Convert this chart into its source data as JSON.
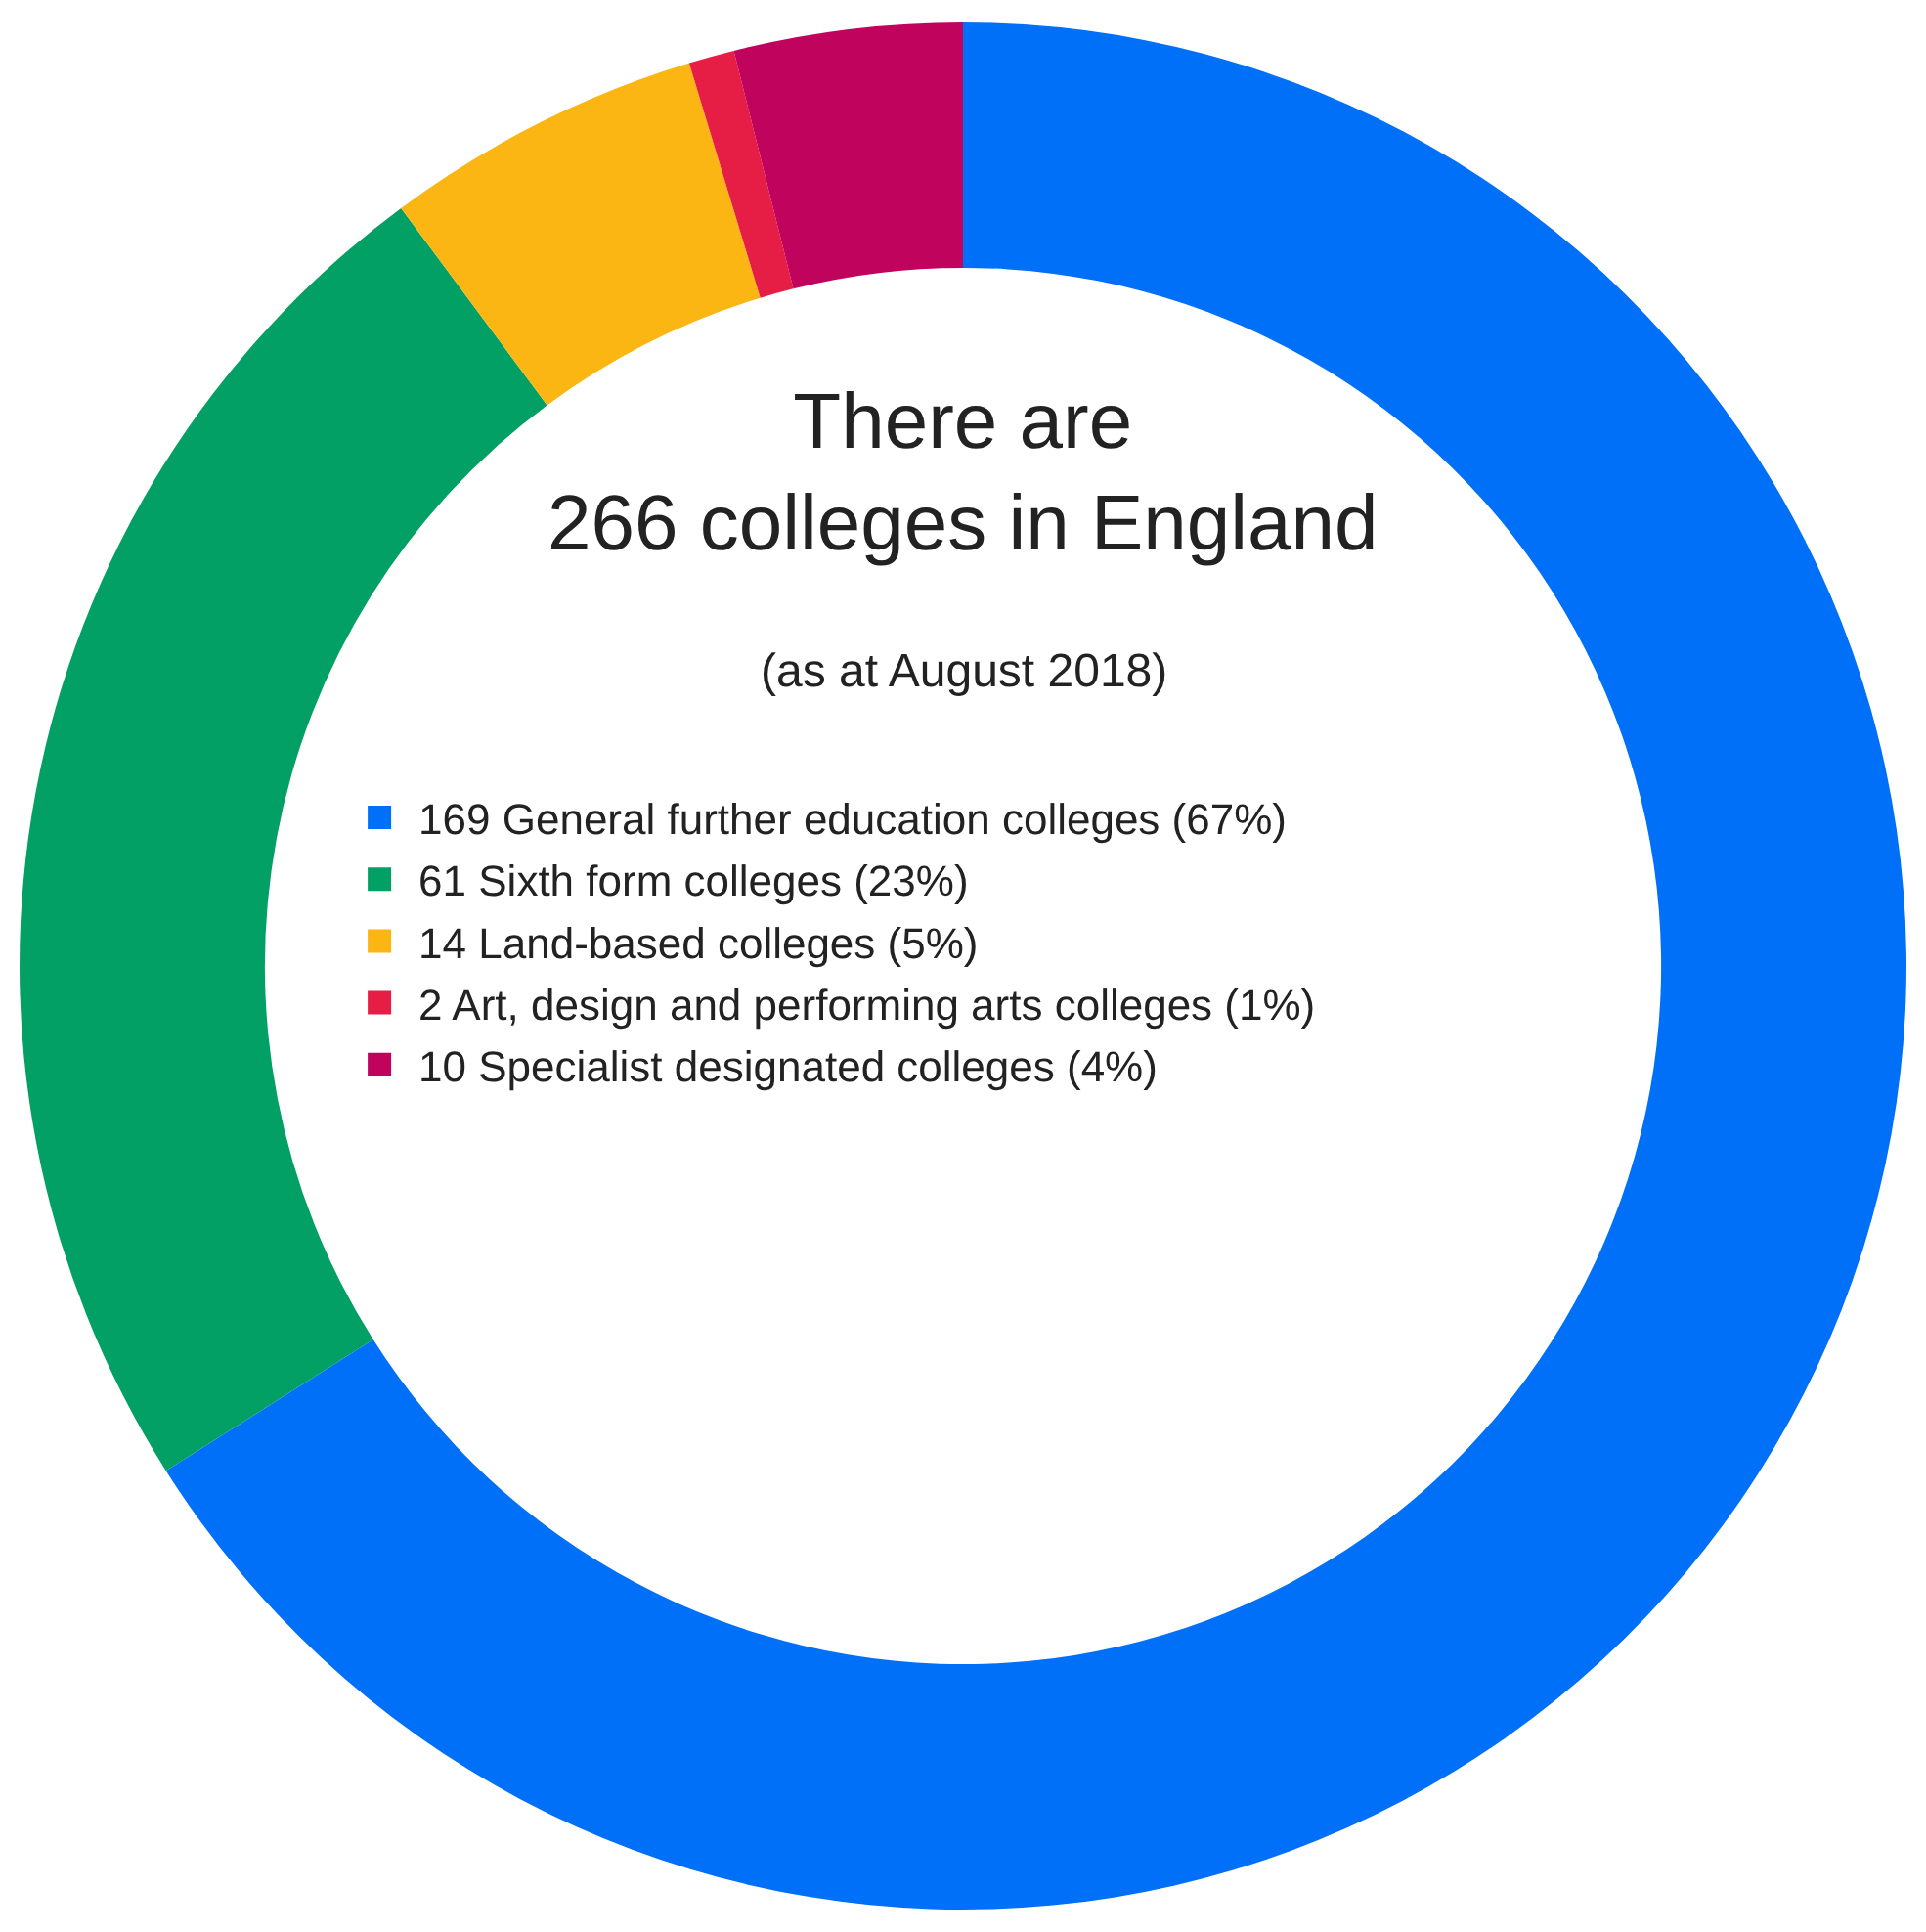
{
  "chart_data": {
    "type": "donut",
    "title": "There are\n266 colleges in England",
    "subtitle": "(as at August 2018)",
    "categories": [
      "169 General further education colleges (67%)",
      "61 Sixth form colleges (23%)",
      "14 Land-based colleges (5%)",
      "2 Art, design and performing arts colleges (1%)",
      "10 Specialist designated colleges (4%)"
    ],
    "values": [
      169,
      61,
      14,
      2,
      10
    ],
    "colors": [
      "#0070f8",
      "#02a064",
      "#fbb614",
      "#e61e46",
      "#c0035c"
    ],
    "legend": "center"
  }
}
